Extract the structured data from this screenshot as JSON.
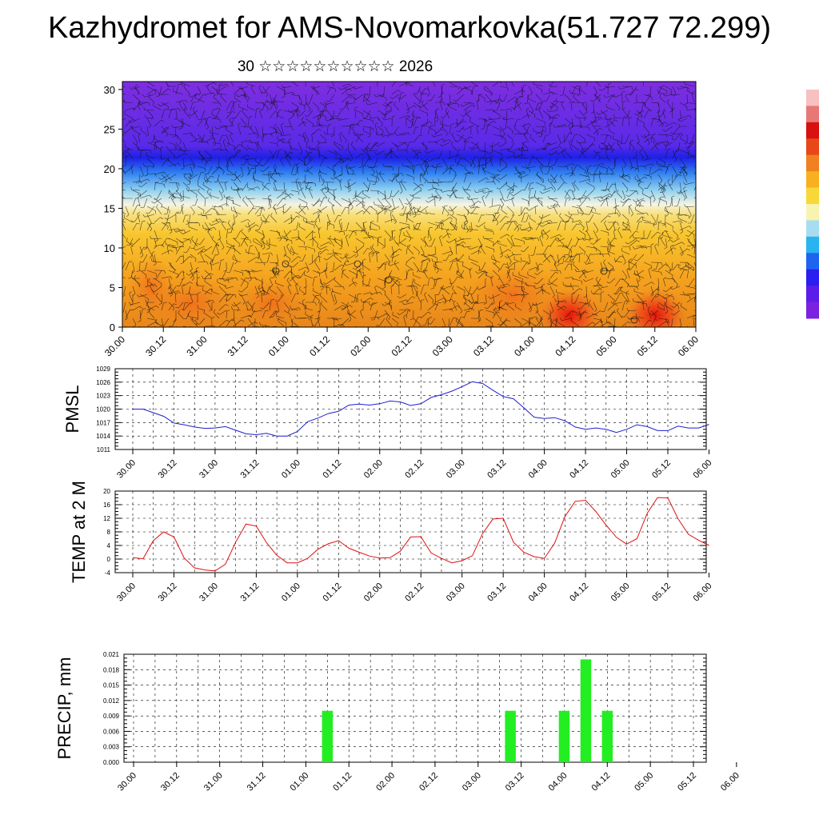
{
  "title": "Kazhydromet for AMS-Novomarkovka(51.727 72.299)",
  "subtitle": "30 ☆☆☆☆☆☆☆☆☆☆ 2026",
  "colors": {
    "pmsl_line": "#1f1fd0",
    "temp_line": "#dd1111",
    "precip_bar": "#22ee22",
    "colorbar": [
      "#7b22e0",
      "#5a1ee8",
      "#2a1ef0",
      "#1e64f0",
      "#28b4f0",
      "#a8dcf0",
      "#f8f4b0",
      "#f8d838",
      "#f8b020",
      "#f08020",
      "#e84818",
      "#d81010",
      "#e87878",
      "#f8c0c0"
    ]
  },
  "chart_data": [
    {
      "type": "heatmap",
      "name": "cross-section",
      "x_tick_labels": [
        "30.00",
        "30.12",
        "31.00",
        "31.12",
        "01.00",
        "01.12",
        "02.00",
        "02.12",
        "03.00",
        "03.12",
        "04.00",
        "04.12",
        "05.00",
        "05.12",
        "06.00"
      ],
      "y_tick_labels": [
        "0",
        "5",
        "10",
        "15",
        "20",
        "25",
        "30"
      ],
      "ylim": [
        0,
        31
      ],
      "description_levels": {
        "warm_layer_top": 15,
        "cold_band": 21.5
      }
    },
    {
      "type": "line",
      "name": "pmsl",
      "ylabel": "PMSL",
      "ylim": [
        1011,
        1029
      ],
      "y_tick_labels": [
        "1011",
        "1014",
        "1017",
        "1020",
        "1023",
        "1026",
        "1029"
      ],
      "x_tick_labels": [
        "30.00",
        "30.12",
        "31.00",
        "31.12",
        "01.00",
        "01.12",
        "02.00",
        "02.12",
        "03.00",
        "03.12",
        "04.00",
        "04.12",
        "05.00",
        "05.12",
        "06.00"
      ],
      "values": [
        1020.0,
        1020.0,
        1019.2,
        1018.4,
        1016.9,
        1016.5,
        1016.0,
        1015.7,
        1015.8,
        1016.1,
        1015.3,
        1014.5,
        1014.3,
        1014.6,
        1014.0,
        1014.0,
        1015.0,
        1017.2,
        1018.0,
        1019.0,
        1019.5,
        1020.9,
        1021.1,
        1020.9,
        1021.2,
        1021.8,
        1021.6,
        1020.8,
        1021.2,
        1022.6,
        1023.2,
        1024.0,
        1025.0,
        1026.1,
        1025.7,
        1024.2,
        1022.8,
        1022.3,
        1020.3,
        1018.2,
        1017.9,
        1018.1,
        1017.4,
        1016.0,
        1015.5,
        1015.8,
        1015.5,
        1014.8,
        1015.5,
        1016.5,
        1016.1,
        1015.2,
        1015.2,
        1016.2,
        1015.8,
        1015.8,
        1016.6
      ]
    },
    {
      "type": "line",
      "name": "temperature",
      "ylabel": "TEMP at 2 M",
      "ylim": [
        -4,
        20
      ],
      "y_tick_labels": [
        "-4",
        "0",
        "4",
        "8",
        "12",
        "16",
        "20"
      ],
      "x_tick_labels": [
        "30.00",
        "30.12",
        "31.00",
        "31.12",
        "01.00",
        "01.12",
        "02.00",
        "02.12",
        "03.00",
        "03.12",
        "04.00",
        "04.12",
        "05.00",
        "05.12",
        "06.00"
      ],
      "values": [
        0.4,
        0.1,
        5.4,
        8.0,
        6.5,
        0.3,
        -2.6,
        -3.2,
        -3.5,
        -1.5,
        5.0,
        10.3,
        9.7,
        4.8,
        1.1,
        -1.1,
        -1.1,
        0.2,
        2.9,
        4.5,
        5.4,
        3.2,
        2.0,
        0.9,
        0.3,
        0.4,
        2.3,
        6.5,
        6.6,
        1.8,
        0.2,
        -1.1,
        -0.5,
        1.0,
        7.5,
        11.8,
        12.0,
        5.0,
        2.0,
        0.7,
        0.2,
        4.7,
        12.5,
        17.0,
        17.3,
        14.0,
        10.0,
        6.4,
        4.4,
        6.0,
        13.5,
        18.1,
        18.0,
        11.8,
        7.3,
        5.5,
        4.0
      ]
    },
    {
      "type": "bar",
      "name": "precipitation",
      "ylabel": "PRECIP, mm",
      "ylim": [
        0,
        0.021
      ],
      "y_tick_labels": [
        "0.000",
        "0.003",
        "0.006",
        "0.009",
        "0.012",
        "0.015",
        "0.018",
        "0.021"
      ],
      "x_tick_labels": [
        "30.00",
        "30.12",
        "31.00",
        "31.12",
        "01.00",
        "01.12",
        "02.00",
        "02.12",
        "03.00",
        "03.12",
        "04.00",
        "04.12",
        "05.00",
        "05.12",
        "06.00"
      ],
      "bar_times_hours": [
        54,
        105,
        120,
        126,
        132
      ],
      "values": [
        0.01,
        0.01,
        0.01,
        0.02,
        0.01
      ]
    }
  ]
}
